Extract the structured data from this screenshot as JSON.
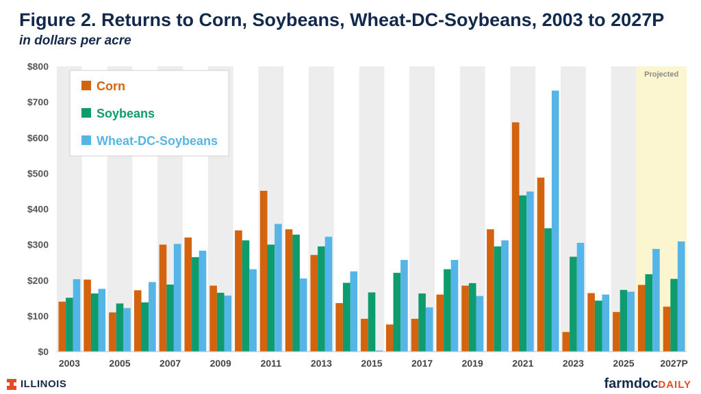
{
  "header": {
    "title": "Figure 2.  Returns to Corn, Soybeans, Wheat-DC-Soybeans, 2003 to 2027P",
    "subtitle": "in dollars per acre"
  },
  "footer": {
    "left_logo_text": "ILLINOIS",
    "right_logo_part1": "farmdoc",
    "right_logo_part2": "DAILY"
  },
  "colors": {
    "corn": "#D4630F",
    "soybeans": "#0E9B6E",
    "wheat": "#55B5E6",
    "band": "#EDEDED",
    "projected": "#FBF6D0",
    "axis_text": "#555555"
  },
  "chart_data": {
    "type": "bar",
    "categories": [
      "2003",
      "2004",
      "2005",
      "2006",
      "2007",
      "2008",
      "2009",
      "2010",
      "2011",
      "2012",
      "2013",
      "2014",
      "2015",
      "2016",
      "2017",
      "2018",
      "2019",
      "2020",
      "2021",
      "2022",
      "2023",
      "2024",
      "2025",
      "2026",
      "2027P"
    ],
    "x_tick_labels": [
      "2003",
      "",
      "2005",
      "",
      "2007",
      "",
      "2009",
      "",
      "2011",
      "",
      "2013",
      "",
      "2015",
      "",
      "2017",
      "",
      "2019",
      "",
      "2021",
      "",
      "2023",
      "",
      "2025",
      "",
      "2027P"
    ],
    "series": [
      {
        "name": "Corn",
        "values": [
          140,
          202,
          110,
          172,
          300,
          320,
          185,
          340,
          451,
          343,
          271,
          136,
          92,
          76,
          92,
          160,
          185,
          343,
          643,
          488,
          55,
          164,
          111,
          187,
          126
        ]
      },
      {
        "name": "Soybeans",
        "values": [
          151,
          163,
          135,
          138,
          188,
          265,
          165,
          312,
          300,
          328,
          295,
          193,
          166,
          221,
          163,
          231,
          192,
          295,
          438,
          346,
          266,
          143,
          173,
          217,
          204
        ]
      },
      {
        "name": "Wheat-DC-Soybeans",
        "values": [
          203,
          176,
          122,
          195,
          302,
          283,
          157,
          231,
          358,
          205,
          322,
          225,
          3,
          257,
          124,
          257,
          156,
          312,
          449,
          732,
          305,
          160,
          168,
          288,
          309
        ]
      }
    ],
    "ylim": [
      0,
      800
    ],
    "y_ticks": [
      0,
      100,
      200,
      300,
      400,
      500,
      600,
      700,
      800
    ],
    "y_tick_labels": [
      "$0",
      "$100",
      "$200",
      "$300",
      "$400",
      "$500",
      "$600",
      "$700",
      "$800"
    ],
    "projected_from": "2026",
    "projected_label": "Projected",
    "legend_position": "top-left",
    "grid": false
  }
}
